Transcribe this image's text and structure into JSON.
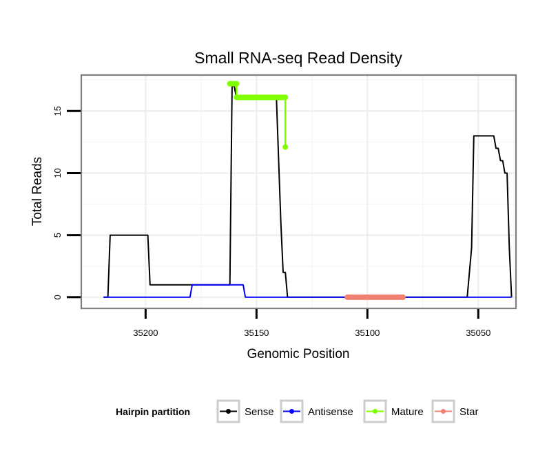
{
  "chart_data": {
    "type": "line",
    "title": "Small RNA-seq Read Density",
    "xlabel": "Genomic Position",
    "ylabel": "Total Reads",
    "xlim": [
      35229,
      35033
    ],
    "ylim": [
      -0.9,
      17.9
    ],
    "x_reversed": true,
    "x_ticks": [
      35200,
      35150,
      35100,
      35050
    ],
    "x_tick_labels": [
      "35200",
      "35150",
      "35100",
      "35050"
    ],
    "y_ticks": [
      0,
      5,
      10,
      15
    ],
    "y_tick_labels": [
      "0",
      "5",
      "10",
      "15"
    ],
    "grid": true,
    "legend": {
      "title": "Hairpin partition",
      "position": "bottom",
      "entries": [
        "Sense",
        "Antisense",
        "Mature",
        "Star"
      ]
    },
    "series": [
      {
        "name": "Sense",
        "style": "line",
        "color": "#000000",
        "x": [
          35219,
          35217,
          35216,
          35199,
          35198,
          35175,
          35162,
          35161,
          35160,
          35159,
          35146,
          35141,
          35139,
          35138,
          35137,
          35136,
          35135,
          35055,
          35053,
          35052,
          35043,
          35042,
          35041,
          35040,
          35039,
          35038,
          35037,
          35036,
          35035
        ],
        "values": [
          0,
          0,
          5,
          5,
          1,
          1,
          1,
          17,
          17,
          16,
          16,
          16,
          6,
          2,
          2,
          0,
          0,
          0,
          4,
          13,
          13,
          12,
          12,
          11,
          11,
          10,
          10,
          4,
          0
        ]
      },
      {
        "name": "Antisense",
        "style": "line",
        "color": "#0000ff",
        "x": [
          35219,
          35180,
          35179,
          35160,
          35156,
          35155,
          35035
        ],
        "values": [
          0,
          0,
          1,
          1,
          1,
          0,
          0
        ]
      },
      {
        "name": "Mature",
        "style": "thick",
        "color": "#7fff00",
        "x": [
          35162,
          35159,
          35159,
          35137,
          35137
        ],
        "values": [
          17.2,
          17.2,
          16.1,
          16.1,
          12.1
        ]
      },
      {
        "name": "Star",
        "style": "thick",
        "color": "#f08070",
        "x": [
          35109,
          35084
        ],
        "values": [
          0,
          0
        ]
      }
    ]
  }
}
